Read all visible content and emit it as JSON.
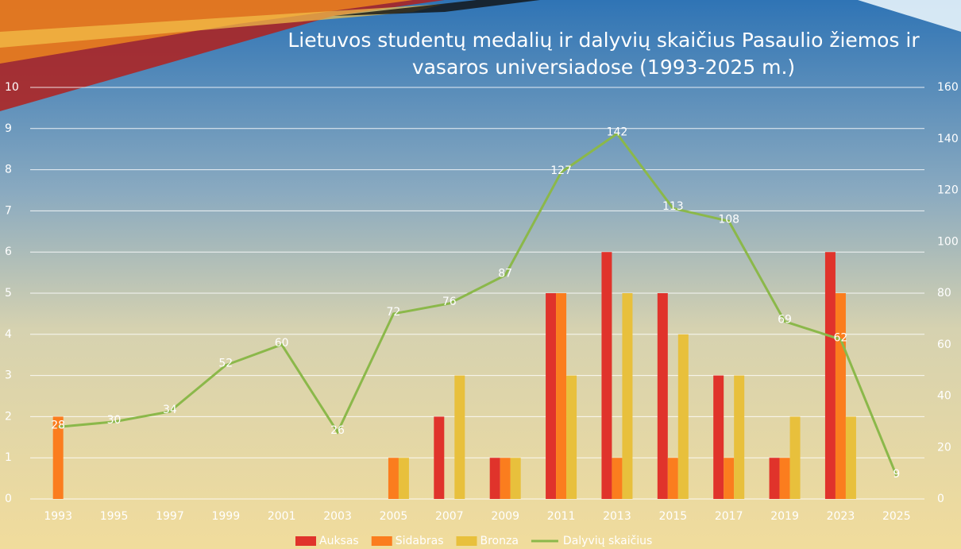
{
  "chart_data": {
    "type": "bar-line",
    "title": "Lietuvos studentų medalių ir dalyvių skaičius Pasaulio žiemos ir vasaros universiadose (1993-2025 m.)",
    "categories": [
      "1993",
      "1995",
      "1997",
      "1999",
      "2001",
      "2003",
      "2005",
      "2007",
      "2009",
      "2011",
      "2013",
      "2015",
      "2017",
      "2019",
      "2023",
      "2025"
    ],
    "series": [
      {
        "name": "Auksas",
        "type": "bar",
        "color": "#e0332b",
        "values": [
          null,
          null,
          null,
          null,
          null,
          null,
          null,
          2,
          1,
          5,
          6,
          5,
          3,
          1,
          6,
          null
        ]
      },
      {
        "name": "Sidabras",
        "type": "bar",
        "color": "#fb7d1e",
        "values": [
          2,
          null,
          null,
          null,
          null,
          null,
          1,
          null,
          1,
          5,
          1,
          1,
          1,
          1,
          5,
          null
        ]
      },
      {
        "name": "Bronza",
        "type": "bar",
        "color": "#e8c03c",
        "values": [
          null,
          null,
          null,
          null,
          null,
          null,
          1,
          3,
          1,
          3,
          5,
          4,
          3,
          2,
          2,
          null
        ]
      },
      {
        "name": "Dalyvių skaičius",
        "type": "line",
        "axis": "y2",
        "color": "#8bb84a",
        "values": [
          28,
          30,
          34,
          52,
          60,
          26,
          72,
          76,
          87,
          127,
          142,
          113,
          108,
          69,
          62,
          9
        ]
      }
    ],
    "ylim": [
      0,
      10
    ],
    "yticks": [
      0,
      1,
      2,
      3,
      4,
      5,
      6,
      7,
      8,
      9,
      10
    ],
    "y2lim": [
      0,
      160
    ],
    "y2ticks": [
      0,
      20,
      40,
      60,
      80,
      100,
      120,
      140,
      160
    ],
    "grid": true,
    "legend": "bottom"
  }
}
